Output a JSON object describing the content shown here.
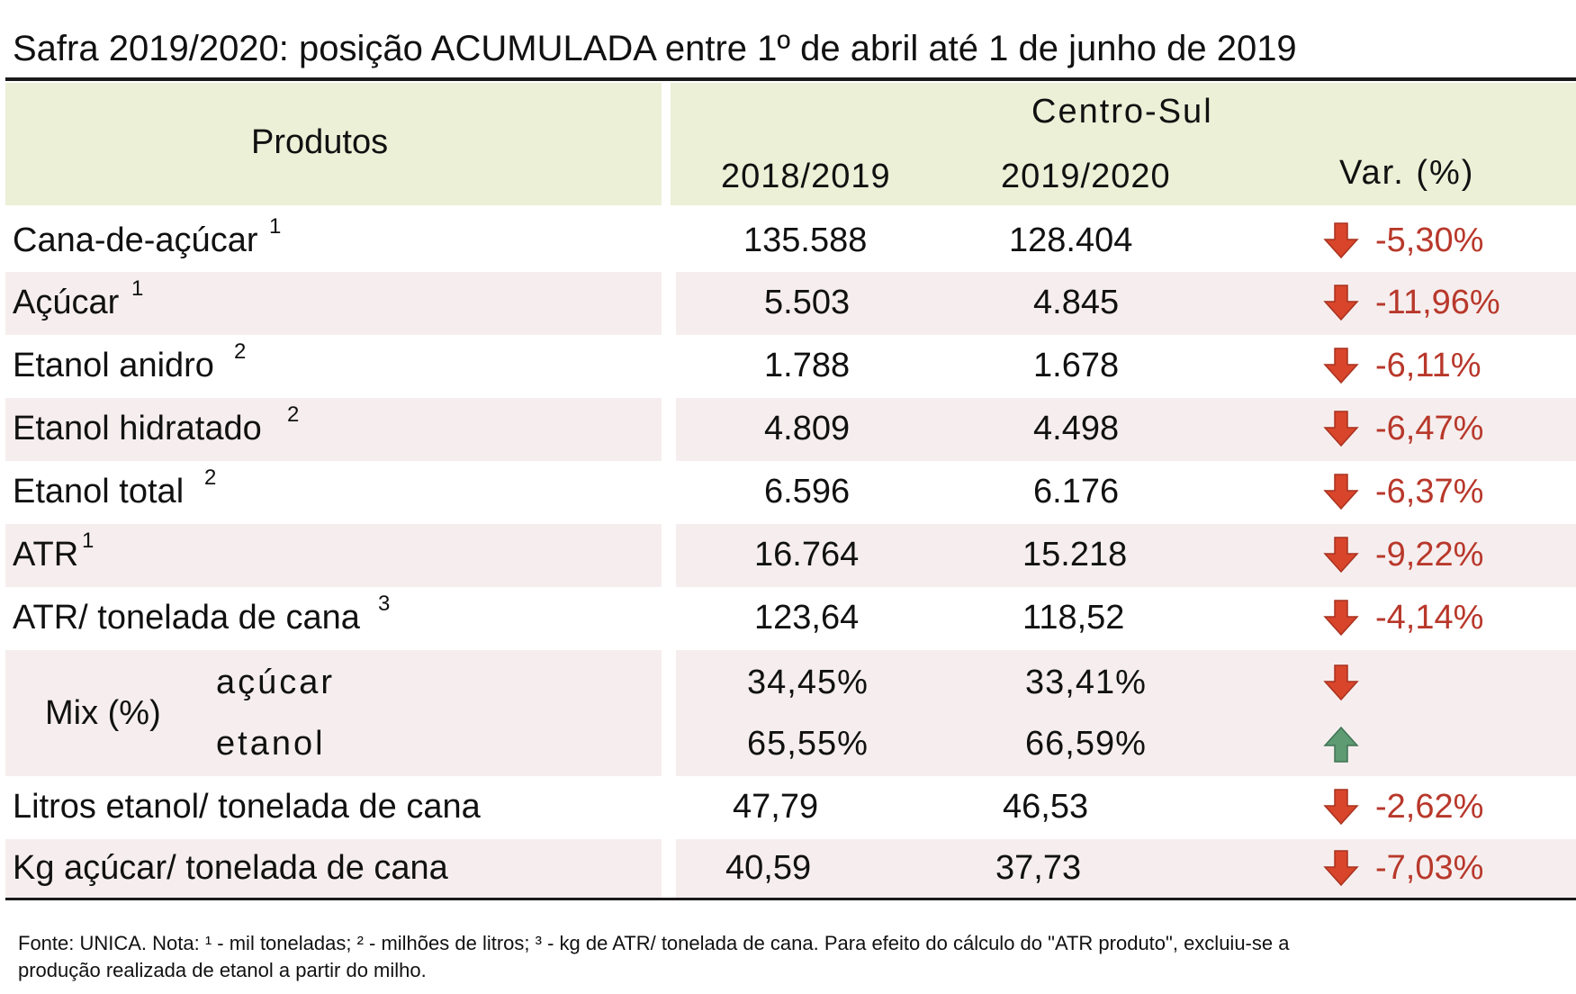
{
  "title": "Safra 2019/2020: posição ACUMULADA entre 1º de abril até 1 de junho de 2019",
  "header": {
    "products": "Produtos",
    "region": "Centro-Sul",
    "col1": "2018/2019",
    "col2": "2019/2020",
    "col3": "Var. (%)"
  },
  "rows": [
    {
      "label": "Cana-de-açúcar",
      "sup": "1",
      "v1": "135.588",
      "v2": "128.404",
      "var": "-5,30%",
      "dir": "down"
    },
    {
      "label": "Açúcar",
      "sup": "1",
      "v1": "5.503",
      "v2": "4.845",
      "var": "-11,96%",
      "dir": "down"
    },
    {
      "label": "Etanol anidro",
      "sup": "2",
      "v1": "1.788",
      "v2": "1.678",
      "var": "-6,11%",
      "dir": "down"
    },
    {
      "label": "Etanol hidratado",
      "sup": "2",
      "v1": "4.809",
      "v2": "4.498",
      "var": "-6,47%",
      "dir": "down"
    },
    {
      "label": "Etanol total",
      "sup": "2",
      "v1": "6.596",
      "v2": "6.176",
      "var": "-6,37%",
      "dir": "down"
    },
    {
      "label": "ATR",
      "sup": "1",
      "v1": "16.764",
      "v2": "15.218",
      "var": "-9,22%",
      "dir": "down"
    },
    {
      "label": "ATR/ tonelada de cana",
      "sup": "3",
      "v1": "123,64",
      "v2": "118,52",
      "var": "-4,14%",
      "dir": "down"
    }
  ],
  "mix": {
    "label": "Mix (%)",
    "sugar": {
      "label": "açúcar",
      "v1": "34,45%",
      "v2": "33,41%",
      "dir": "down"
    },
    "ethanol": {
      "label": "etanol",
      "v1": "65,55%",
      "v2": "66,59%",
      "dir": "up"
    }
  },
  "rows2": [
    {
      "label": "Litros etanol/ tonelada de cana",
      "v1": "47,79",
      "v2": "46,53",
      "var": "-2,62%",
      "dir": "down"
    },
    {
      "label": "Kg açúcar/ tonelada de cana",
      "v1": "40,59",
      "v2": "37,73",
      "var": "-7,03%",
      "dir": "down"
    }
  ],
  "footnote": {
    "line1": "Fonte: UNICA. Nota: ¹ - mil toneladas; ² - milhões de litros; ³ - kg de ATR/ tonelada de cana. Para efeito do cálculo do \"ATR produto\", excluiu-se a",
    "line2": "produção realizada de etanol a partir do milho."
  },
  "colors": {
    "down_arrow": "#d8452b",
    "up_arrow": "#5e9a72",
    "variation_text": "#b8382b",
    "header_bg": "#ebf0d7",
    "row_shade": "#f6eeee"
  }
}
